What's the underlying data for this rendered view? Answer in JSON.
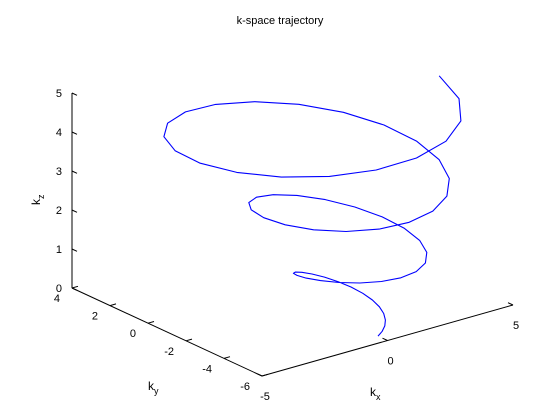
{
  "chart_data": {
    "type": "line3d",
    "title": "k-space trajectory",
    "xlabel": {
      "base": "k",
      "sub": "x"
    },
    "ylabel": {
      "base": "k",
      "sub": "y"
    },
    "zlabel": {
      "base": "k",
      "sub": "z"
    },
    "xlim": [
      -5,
      5
    ],
    "ylim": [
      -6,
      4
    ],
    "zlim": [
      0,
      5
    ],
    "xticks": [
      {
        "value": -5,
        "label": "-5"
      },
      {
        "value": 0,
        "label": "0"
      },
      {
        "value": 5,
        "label": "5"
      }
    ],
    "yticks": [
      {
        "value": 4,
        "label": "4"
      },
      {
        "value": 2,
        "label": "2"
      },
      {
        "value": 0,
        "label": "0"
      },
      {
        "value": -2,
        "label": "-2"
      },
      {
        "value": -4,
        "label": "-4"
      },
      {
        "value": -6,
        "label": "-6"
      }
    ],
    "zticks": [
      {
        "value": 0,
        "label": "0"
      },
      {
        "value": 1,
        "label": "1"
      },
      {
        "value": 2,
        "label": "2"
      },
      {
        "value": 3,
        "label": "3"
      },
      {
        "value": 4,
        "label": "4"
      },
      {
        "value": 5,
        "label": "5"
      }
    ],
    "grid": false,
    "series": [
      {
        "color": "#0000ff",
        "x": [
          0,
          0.196,
          0.386,
          0.557,
          0.695,
          0.785,
          0.814,
          0.771,
          0.651,
          0.456,
          0.198,
          -0.106,
          -0.43,
          -0.745,
          -1.015,
          -1.204,
          -1.282,
          -1.228,
          -1.033,
          -0.702,
          -0.257,
          0.263,
          0.811,
          1.333,
          1.77,
          2.066,
          2.177,
          2.078,
          1.765,
          1.264,
          0.626,
          -0.084,
          -0.797,
          -1.436,
          -1.925,
          -2.198,
          -2.208,
          -1.934,
          -1.386,
          -0.605,
          0.343,
          1.362,
          2.345,
          3.182,
          3.774,
          4.041,
          3.936,
          3.448,
          2.61,
          1.499,
          0.223,
          -1.088,
          -2.297,
          -3.272,
          -3.903,
          -4.112,
          -3.865,
          -3.177,
          -2.111,
          -0.772,
          0.703,
          2.162,
          3.453,
          4.436,
          5.0
        ],
        "y": [
          -5.5,
          -5.462,
          -5.347,
          -5.153,
          -4.882,
          -4.536,
          -4.129,
          -3.68,
          -3.22,
          -2.786,
          -2.421,
          -2.167,
          -2.062,
          -2.133,
          -2.39,
          -2.825,
          -3.409,
          -4.092,
          -4.808,
          -5.477,
          -6.018,
          -6.358,
          -6.44,
          -6.232,
          -5.731,
          -4.972,
          -4.021,
          -2.974,
          -1.945,
          -1.054,
          -0.409,
          -0.094,
          -0.157,
          -0.598,
          -1.371,
          -2.388,
          -3.532,
          -4.667,
          -5.652,
          -6.36,
          -6.691,
          -6.585,
          -6.026,
          -5.048,
          -3.733,
          -2.205,
          -0.615,
          0.878,
          2.115,
          2.966,
          3.34,
          3.194,
          2.541,
          1.446,
          0.024,
          -1.574,
          -3.172,
          -4.608,
          -5.733,
          -6.425,
          -6.6,
          -6.222,
          -5.302,
          -3.901,
          -2.118
        ],
        "z": [
          0,
          0.078,
          0.156,
          0.234,
          0.313,
          0.391,
          0.469,
          0.547,
          0.625,
          0.703,
          0.781,
          0.859,
          0.938,
          1.016,
          1.094,
          1.172,
          1.25,
          1.328,
          1.406,
          1.484,
          1.563,
          1.641,
          1.719,
          1.797,
          1.875,
          1.953,
          2.031,
          2.109,
          2.188,
          2.266,
          2.344,
          2.422,
          2.5,
          2.578,
          2.656,
          2.734,
          2.813,
          2.891,
          2.969,
          3.047,
          3.125,
          3.203,
          3.281,
          3.359,
          3.438,
          3.516,
          3.594,
          3.672,
          3.75,
          3.828,
          3.906,
          3.984,
          4.063,
          4.141,
          4.219,
          4.297,
          4.375,
          4.453,
          4.531,
          4.609,
          4.688,
          4.766,
          4.844,
          4.922,
          5.0
        ]
      }
    ]
  }
}
